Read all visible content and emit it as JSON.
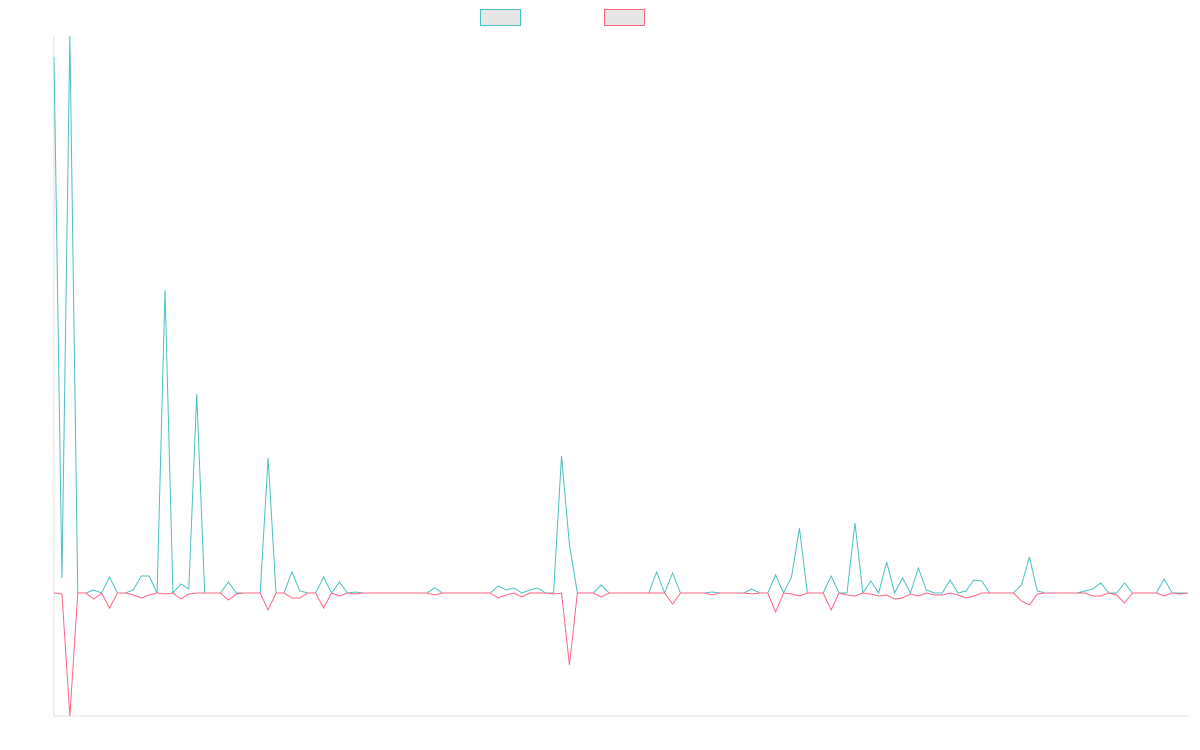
{
  "chart_data": {
    "type": "line",
    "categories": [
      null,
      null,
      null,
      null,
      null,
      null,
      null,
      null,
      null,
      null,
      null,
      null,
      null,
      null,
      null,
      null,
      null,
      null,
      null,
      null,
      null,
      null,
      null,
      null,
      null,
      null,
      null,
      null,
      null,
      null,
      null,
      null,
      null,
      null,
      null,
      null,
      null,
      null,
      null,
      null,
      null,
      null,
      null,
      null,
      null,
      null,
      null,
      null,
      null,
      null,
      null,
      null,
      null,
      null,
      null,
      null,
      null,
      null,
      null,
      null,
      null,
      null,
      null,
      null,
      null,
      null,
      null,
      null,
      null,
      null,
      null,
      null,
      null,
      null,
      null,
      null,
      null,
      null,
      null,
      null,
      null,
      null,
      null,
      null,
      null,
      null,
      null,
      null,
      null,
      null,
      null,
      null,
      null,
      null,
      null,
      null,
      null,
      null,
      null,
      null,
      null,
      null,
      null,
      null,
      null,
      null,
      null,
      null,
      null,
      null,
      null,
      null,
      null,
      null,
      null,
      null,
      null,
      null,
      null,
      null,
      null,
      null,
      null,
      null,
      null,
      null,
      null,
      null,
      null,
      null,
      null,
      null,
      null,
      null,
      null,
      null,
      null,
      null,
      null,
      null,
      null,
      null,
      null,
      null
    ],
    "series": [
      {
        "color": "#4bc0c0",
        "values": [
          53.6,
          1.5,
          55.7,
          0,
          0,
          0.3,
          0,
          1.6,
          0,
          0,
          0.3,
          1.7,
          1.7,
          0,
          30.3,
          0,
          0.9,
          0.4,
          19.9,
          0,
          0,
          0,
          1.1,
          0,
          0,
          0,
          0,
          13.5,
          0,
          0,
          2.1,
          0.2,
          0,
          0,
          1.6,
          0,
          1.1,
          0,
          0.1,
          0,
          0,
          0,
          0,
          0,
          0,
          0,
          0,
          0,
          0.5,
          0,
          0,
          0,
          0,
          0,
          0,
          0,
          0.7,
          0.3,
          0.5,
          0,
          0.3,
          0.5,
          0,
          0,
          13.7,
          4.8,
          0,
          0,
          0,
          0.8,
          0,
          0,
          0,
          0,
          0,
          0,
          2.1,
          0,
          2,
          0,
          0,
          0,
          0,
          0.1,
          0,
          0,
          0,
          0,
          0.4,
          0,
          0,
          1.8,
          0,
          1.6,
          6.5,
          0,
          0,
          0,
          1.7,
          0,
          0,
          7,
          0,
          1.2,
          0,
          3.1,
          0,
          1.5,
          0,
          2.5,
          0.3,
          0,
          0,
          1.3,
          0,
          0.2,
          1.3,
          1.2,
          0,
          0,
          0,
          0,
          0.8,
          3.6,
          0.2,
          0,
          0,
          0,
          0,
          0,
          0.2,
          0.4,
          1,
          0,
          0,
          1,
          0,
          0,
          0,
          0,
          1.4,
          0,
          0,
          0
        ]
      },
      {
        "color": "#ff6384",
        "values": [
          0,
          -0.1,
          -12.3,
          0,
          0,
          -0.6,
          0,
          -1.5,
          0,
          0,
          -0.2,
          -0.5,
          -0.2,
          0,
          -0.1,
          0,
          -0.6,
          -0.1,
          0,
          0,
          0,
          0,
          -0.7,
          -0.1,
          0,
          0,
          0,
          -1.7,
          0,
          0,
          -0.5,
          -0.5,
          0,
          0,
          -1.5,
          0,
          -0.3,
          0,
          -0.1,
          0,
          0,
          0,
          0,
          0,
          0,
          0,
          0,
          0,
          -0.2,
          0,
          0,
          0,
          0,
          0,
          0,
          0,
          -0.5,
          -0.2,
          0,
          -0.4,
          0,
          0,
          0,
          -0.1,
          0,
          -7.2,
          0,
          0,
          0,
          -0.4,
          0,
          0,
          0,
          0,
          0,
          0,
          0,
          0,
          -1.1,
          0,
          0,
          0,
          0,
          -0.2,
          0,
          0,
          0,
          0,
          -0.1,
          0,
          0,
          -1.9,
          0,
          -0.1,
          -0.3,
          0,
          0,
          0,
          -1.7,
          0,
          -0.2,
          -0.3,
          0,
          -0.1,
          -0.3,
          -0.2,
          -0.6,
          -0.5,
          -0.1,
          -0.3,
          0,
          -0.2,
          -0.2,
          0,
          -0.2,
          -0.5,
          -0.3,
          0,
          0,
          0,
          0,
          0,
          -0.8,
          -1.2,
          -0.1,
          0,
          0,
          0,
          0,
          0,
          0,
          -0.3,
          -0.3,
          0,
          -0.2,
          -1,
          0,
          0,
          0,
          0,
          -0.3,
          0,
          -0.1,
          0
        ]
      }
    ],
    "ylim": [
      -12.3,
      55.7
    ]
  }
}
